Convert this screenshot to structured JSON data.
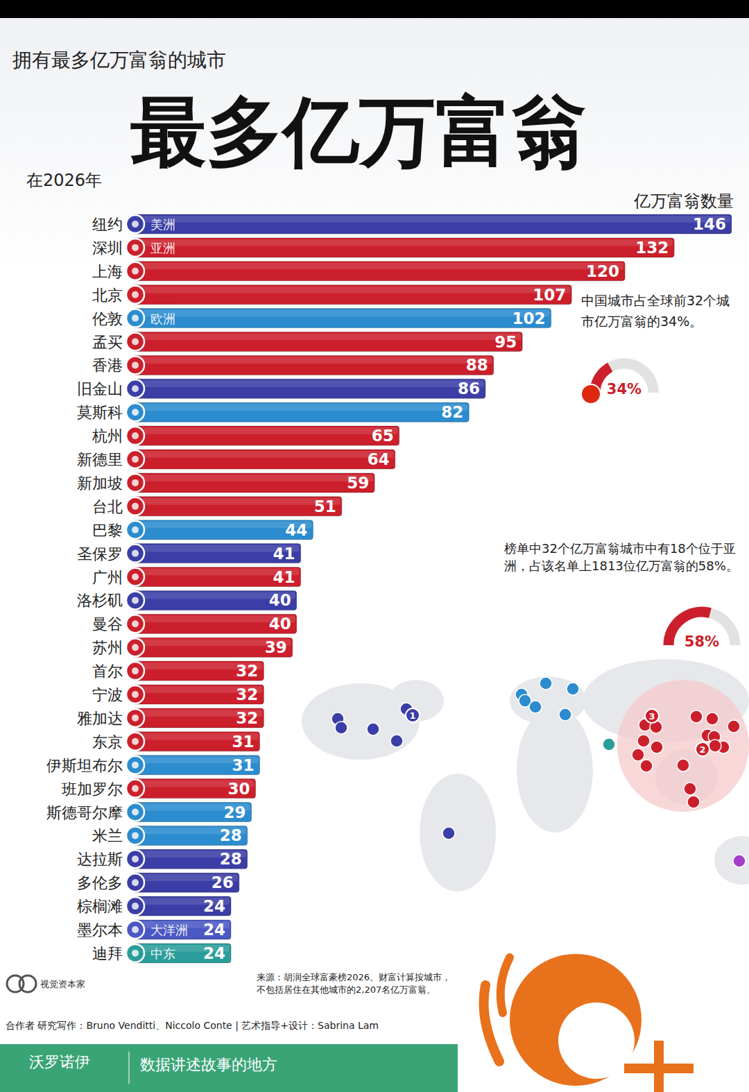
{
  "chart_data": {
    "type": "bar",
    "orientation": "horizontal",
    "supertitle": "拥有最多亿万富翁的城市",
    "title": "最多亿万富翁",
    "subtitle": "在2026年",
    "x_label": "亿万富翁数量",
    "categories": [
      "纽约",
      "深圳",
      "上海",
      "北京",
      "伦敦",
      "孟买",
      "香港",
      "旧金山",
      "莫斯科",
      "杭州",
      "新德里",
      "新加坡",
      "台北",
      "巴黎",
      "圣保罗",
      "广州",
      "洛杉矶",
      "曼谷",
      "苏州",
      "首尔",
      "宁波",
      "雅加达",
      "东京",
      "伊斯坦布尔",
      "班加罗尔",
      "斯德哥尔摩",
      "米兰",
      "达拉斯",
      "多伦多",
      "棕榈滩",
      "墨尔本",
      "迪拜"
    ],
    "values": [
      146,
      132,
      120,
      107,
      102,
      95,
      88,
      86,
      82,
      65,
      64,
      59,
      51,
      44,
      41,
      41,
      40,
      40,
      39,
      32,
      32,
      32,
      31,
      31,
      30,
      29,
      28,
      28,
      26,
      24,
      24,
      24
    ],
    "colors": [
      "#3b3ea6",
      "#cc1f2c",
      "#cc1f2c",
      "#cc1f2c",
      "#2b8ccf",
      "#cc1f2c",
      "#cc1f2c",
      "#3b3ea6",
      "#2b8ccf",
      "#cc1f2c",
      "#cc1f2c",
      "#cc1f2c",
      "#cc1f2c",
      "#2b8ccf",
      "#3b3ea6",
      "#cc1f2c",
      "#3b3ea6",
      "#cc1f2c",
      "#cc1f2c",
      "#cc1f2c",
      "#cc1f2c",
      "#cc1f2c",
      "#cc1f2c",
      "#2b8ccf",
      "#cc1f2c",
      "#2b8ccf",
      "#2b8ccf",
      "#3b3ea6",
      "#3b3ea6",
      "#3b3ea6",
      "#4a58c4",
      "#2a9d9a"
    ],
    "region_labels": [
      "美洲",
      "亚洲",
      null,
      null,
      "欧洲",
      null,
      null,
      null,
      null,
      null,
      null,
      null,
      null,
      null,
      null,
      null,
      null,
      null,
      null,
      null,
      null,
      null,
      null,
      null,
      null,
      null,
      null,
      null,
      null,
      null,
      "大洋洲",
      "中东"
    ],
    "xlim": [
      0,
      146
    ],
    "tick_labels": false,
    "grid": false,
    "data_labels": true,
    "notes": [
      "中国城市占全球前32个城市亿万富翁的34%。",
      "榜单中32个亿万富翁城市中有18个位于亚洲，占该名单上1813位亿万富翁的58%。"
    ],
    "gauges": [
      {
        "value": 34,
        "label": "34%"
      },
      {
        "value": 58,
        "label": "58%"
      }
    ],
    "map_labels": [
      "1",
      "2",
      "3"
    ],
    "source": "来源：胡润全球富豪榜2026。财富计算按城市，不包括居住在其他城市的2,207名亿万富翁。",
    "credits": "合作者 研究写作：Bruno Venditti、Niccolo Conte | 艺术指导+设计：Sabrina Lam",
    "logo": "视觉资本家",
    "brand": "沃罗诺伊",
    "tagline": "数据讲述故事的地方"
  }
}
